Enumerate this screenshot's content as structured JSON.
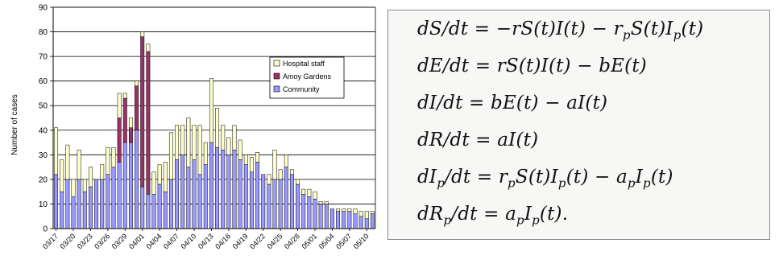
{
  "chart_data": {
    "type": "bar",
    "stacked": true,
    "xlabel": "",
    "ylabel": "Number of cases",
    "ylim": [
      0,
      90
    ],
    "yticks": [
      "0",
      "10",
      "20",
      "30",
      "40",
      "50",
      "60",
      "70",
      "80",
      "90"
    ],
    "grid": "horizontal",
    "legend_position": "right",
    "categories": [
      "03/17",
      "03/18",
      "03/19",
      "03/20",
      "03/21",
      "03/22",
      "03/23",
      "03/24",
      "03/25",
      "03/26",
      "03/27",
      "03/28",
      "03/29",
      "03/30",
      "03/31",
      "04/01",
      "04/02",
      "04/03",
      "04/04",
      "04/05",
      "04/06",
      "04/07",
      "04/08",
      "04/09",
      "04/10",
      "04/11",
      "04/12",
      "04/13",
      "04/14",
      "04/15",
      "04/16",
      "04/17",
      "04/18",
      "04/19",
      "04/20",
      "04/21",
      "04/22",
      "04/23",
      "04/24",
      "04/25",
      "04/26",
      "04/27",
      "04/28",
      "04/29",
      "04/30",
      "05/01",
      "05/02",
      "05/03",
      "05/04",
      "05/05",
      "05/06",
      "05/07",
      "05/08",
      "05/09",
      "05/10",
      "05/11"
    ],
    "x_tick_labels": [
      "03/17",
      "03/20",
      "03/23",
      "03/26",
      "03/29",
      "04/01",
      "04/04",
      "04/07",
      "04/10",
      "04/13",
      "04/16",
      "04/19",
      "04/22",
      "04/25",
      "04/28",
      "05/01",
      "05/04",
      "05/07",
      "05/10"
    ],
    "x_tick_every": 3,
    "series": [
      {
        "name": "Community",
        "color": "#9999ff",
        "values": [
          22,
          15,
          20,
          13,
          20,
          15,
          17,
          20,
          20,
          22,
          25,
          27,
          35,
          35,
          40,
          17,
          14,
          14,
          18,
          15,
          20,
          28,
          30,
          25,
          28,
          22,
          26,
          35,
          33,
          32,
          30,
          32,
          28,
          26,
          23,
          27,
          22,
          18,
          20,
          20,
          25,
          22,
          18,
          14,
          13,
          12,
          10,
          10,
          8,
          7,
          7,
          7,
          6,
          5,
          4,
          6
        ]
      },
      {
        "name": "Amoy Gardens",
        "color": "#993366",
        "values": [
          0,
          0,
          0,
          0,
          0,
          0,
          0,
          0,
          0,
          0,
          0,
          18,
          18,
          6,
          18,
          61,
          58,
          0,
          0,
          0,
          0,
          0,
          0,
          0,
          0,
          0,
          0,
          0,
          0,
          0,
          0,
          0,
          0,
          0,
          0,
          0,
          0,
          0,
          0,
          0,
          0,
          0,
          0,
          0,
          0,
          0,
          0,
          0,
          0,
          0,
          0,
          0,
          0,
          0,
          0,
          0
        ]
      },
      {
        "name": "Hospital staff",
        "color": "#ffffcc",
        "values": [
          19,
          13,
          14,
          7,
          12,
          5,
          8,
          0,
          6,
          11,
          8,
          10,
          2,
          4,
          2,
          2,
          3,
          9,
          8,
          12,
          19,
          14,
          12,
          20,
          14,
          20,
          9,
          26,
          16,
          10,
          7,
          10,
          8,
          4,
          6,
          4,
          0,
          4,
          12,
          4,
          5,
          2,
          2,
          2,
          3,
          3,
          1,
          1,
          0,
          1,
          1,
          1,
          2,
          2,
          3,
          1
        ]
      }
    ]
  }
}
